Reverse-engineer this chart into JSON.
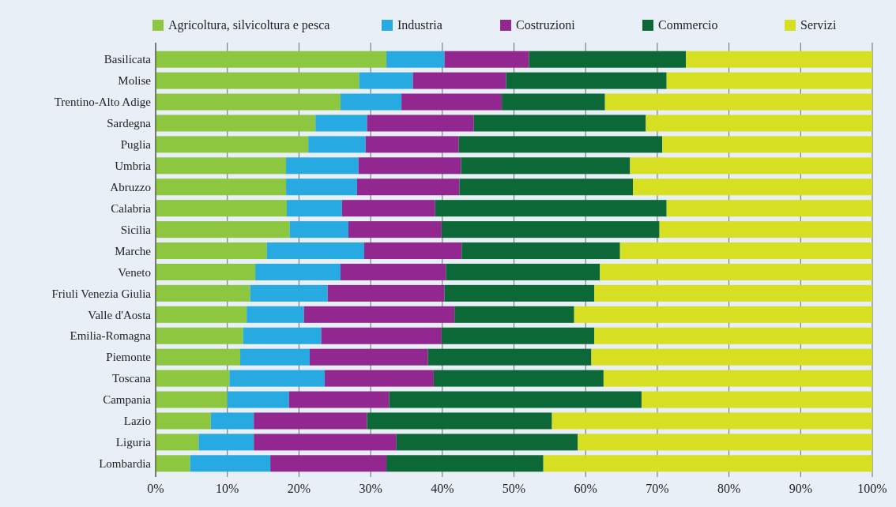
{
  "chart_data": {
    "type": "bar",
    "orientation": "horizontal",
    "stacked": true,
    "legend": "top",
    "grid": "x",
    "categories": [
      "Basilicata",
      "Molise",
      "Trentino-Alto Adige",
      "Sardegna",
      "Puglia",
      "Umbria",
      "Abruzzo",
      "Calabria",
      "Sicilia",
      "Marche",
      "Veneto",
      "Friuli Venezia Giulia",
      "Valle d'Aosta",
      "Emilia-Romagna",
      "Piemonte",
      "Toscana",
      "Campania",
      "Lazio",
      "Liguria",
      "Lombardia"
    ],
    "xlim": [
      0,
      100
    ],
    "xticks": [
      {
        "value": 0,
        "label": "0%"
      },
      {
        "value": 10,
        "label": "10%"
      },
      {
        "value": 20,
        "label": "20%"
      },
      {
        "value": 30,
        "label": "30%"
      },
      {
        "value": 40,
        "label": "40%"
      },
      {
        "value": 50,
        "label": "50%"
      },
      {
        "value": 60,
        "label": "60%"
      },
      {
        "value": 70,
        "label": "70%"
      },
      {
        "value": 80,
        "label": "80%"
      },
      {
        "value": 90,
        "label": "90%"
      },
      {
        "value": 100,
        "label": "100%"
      }
    ],
    "series": [
      {
        "name": "Agricoltura, silvicoltura e pesca",
        "color": "#8dc63f",
        "values": [
          32.2,
          28.4,
          25.8,
          22.3,
          21.3,
          18.2,
          18.2,
          18.3,
          18.7,
          15.5,
          13.9,
          13.2,
          12.7,
          12.2,
          11.8,
          10.3,
          10.0,
          7.7,
          6.0,
          4.8
        ]
      },
      {
        "name": "Industria",
        "color": "#27aae1",
        "values": [
          8.1,
          7.5,
          8.5,
          7.2,
          8.0,
          10.1,
          9.9,
          7.7,
          8.2,
          13.6,
          11.9,
          10.8,
          8.0,
          10.9,
          9.7,
          13.3,
          8.6,
          6.0,
          7.7,
          11.2
        ]
      },
      {
        "name": "Costruzioni",
        "color": "#92278f",
        "values": [
          11.8,
          13.0,
          14.0,
          14.9,
          13.0,
          14.3,
          14.3,
          13.0,
          13.0,
          13.6,
          14.7,
          16.3,
          21.0,
          16.8,
          16.5,
          15.2,
          14.0,
          15.8,
          19.9,
          16.2
        ]
      },
      {
        "name": "Commercio",
        "color": "#0d6838",
        "values": [
          21.9,
          22.4,
          14.4,
          24.0,
          28.4,
          23.6,
          24.2,
          32.3,
          30.4,
          22.1,
          21.5,
          20.9,
          16.7,
          21.3,
          22.8,
          23.7,
          35.2,
          25.8,
          25.3,
          21.9
        ]
      },
      {
        "name": "Servizi",
        "color": "#d7df23",
        "values": [
          26.0,
          28.7,
          37.3,
          31.6,
          29.3,
          33.8,
          33.4,
          28.7,
          29.7,
          35.2,
          38.0,
          38.8,
          41.6,
          38.8,
          39.2,
          37.5,
          32.2,
          44.7,
          41.1,
          45.9
        ]
      }
    ]
  }
}
